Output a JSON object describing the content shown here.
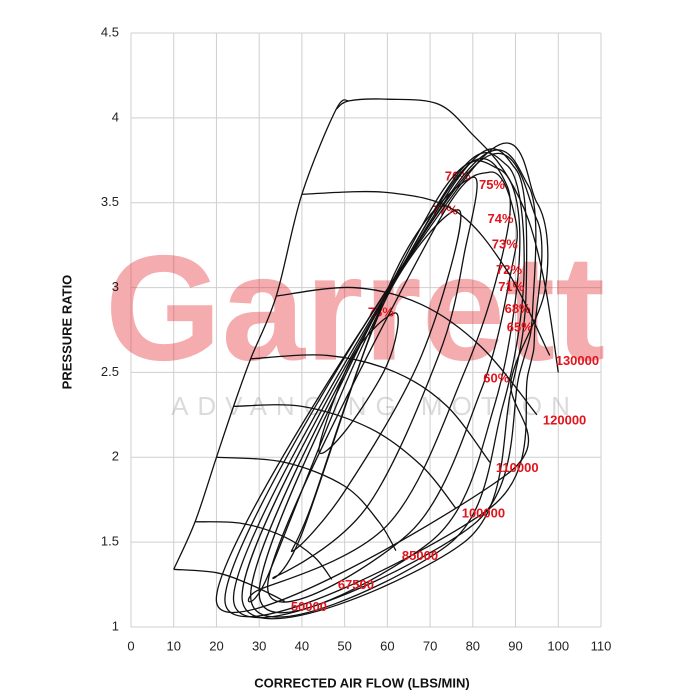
{
  "chart_data": {
    "type": "compressor_map",
    "xlabel": "CORRECTED AIR FLOW (LBS/MIN)",
    "ylabel": "PRESSURE RATIO",
    "watermark": "Garrett",
    "watermark_tagline": "ADVANCING MOTION",
    "xlim": [
      0,
      110
    ],
    "ylim": [
      1,
      4.5
    ],
    "xticks": [
      0,
      10,
      20,
      30,
      40,
      50,
      60,
      70,
      80,
      90,
      100,
      110
    ],
    "yticks": [
      1,
      1.5,
      2,
      2.5,
      3,
      3.5,
      4,
      4.5
    ],
    "grid": true,
    "line_color": "#111111",
    "label_color": "#e3141c",
    "surge_line": {
      "x": [
        10,
        15,
        20,
        24,
        28,
        34,
        40,
        48,
        51
      ],
      "y": [
        1.34,
        1.62,
        2.0,
        2.3,
        2.58,
        2.95,
        3.55,
        4.05,
        4.1
      ]
    },
    "map_boundary": {
      "x": [
        48,
        51,
        60,
        72,
        80,
        87,
        93,
        97,
        100
      ],
      "y": [
        4.05,
        4.1,
        4.11,
        4.08,
        3.9,
        3.7,
        3.4,
        3.0,
        2.5
      ]
    },
    "speed_lines": [
      {
        "label": "50000",
        "x": [
          10,
          20,
          27,
          33,
          36
        ],
        "y": [
          1.34,
          1.32,
          1.26,
          1.19,
          1.15
        ]
      },
      {
        "label": "67500",
        "x": [
          15,
          26,
          36,
          43,
          47
        ],
        "y": [
          1.62,
          1.61,
          1.53,
          1.41,
          1.28
        ]
      },
      {
        "label": "85000",
        "x": [
          20,
          36,
          50,
          58,
          62
        ],
        "y": [
          2.0,
          1.97,
          1.83,
          1.62,
          1.45
        ]
      },
      {
        "label": "100000",
        "x": [
          24,
          40,
          56,
          68,
          76
        ],
        "y": [
          2.3,
          2.3,
          2.17,
          1.95,
          1.7
        ]
      },
      {
        "label": "110000",
        "x": [
          28,
          46,
          62,
          74,
          84
        ],
        "y": [
          2.58,
          2.6,
          2.5,
          2.3,
          1.97
        ]
      },
      {
        "label": "120000",
        "x": [
          34,
          52,
          68,
          82,
          95
        ],
        "y": [
          2.95,
          3.0,
          2.9,
          2.65,
          2.25
        ]
      },
      {
        "label": "130000",
        "x": [
          40,
          60,
          76,
          88,
          98
        ],
        "y": [
          3.55,
          3.56,
          3.45,
          3.1,
          2.6
        ]
      }
    ],
    "efficiency_islands": [
      {
        "label": "78%",
        "x": [
          62,
          52,
          44,
          50,
          60
        ],
        "y": [
          2.85,
          2.6,
          2.05,
          2.15,
          2.55
        ]
      },
      {
        "label": "77%",
        "x": [
          77,
          60,
          42,
          38,
          50,
          68
        ],
        "y": [
          3.45,
          2.95,
          1.7,
          1.45,
          1.8,
          2.6
        ]
      },
      {
        "label": "76%",
        "x": [
          80,
          62,
          40,
          34,
          55,
          72,
          78
        ],
        "y": [
          3.65,
          3.1,
          1.55,
          1.3,
          1.7,
          2.6,
          3.2
        ]
      },
      {
        "label": "75%",
        "x": [
          88,
          78,
          55,
          32,
          30,
          60,
          78,
          87
        ],
        "y": [
          3.6,
          3.7,
          2.7,
          1.3,
          1.22,
          1.6,
          2.5,
          3.2
        ]
      },
      {
        "label": "74%",
        "x": [
          90,
          84,
          70,
          32,
          65,
          82,
          89
        ],
        "y": [
          3.4,
          3.68,
          3.3,
          1.25,
          1.55,
          2.4,
          3.1
        ]
      },
      {
        "label": "73%",
        "x": [
          91,
          86,
          70,
          30,
          70,
          85
        ],
        "y": [
          3.25,
          3.7,
          3.45,
          1.2,
          1.5,
          2.3
        ]
      },
      {
        "label": "72%",
        "x": [
          92,
          88,
          72,
          28,
          74,
          87
        ],
        "y": [
          3.1,
          3.72,
          3.5,
          1.18,
          1.48,
          2.3
        ]
      },
      {
        "label": "71%",
        "x": [
          92.5,
          90,
          74,
          26,
          78,
          89
        ],
        "y": [
          3.0,
          3.7,
          3.55,
          1.17,
          1.5,
          2.4
        ]
      },
      {
        "label": "68%",
        "x": [
          94,
          93,
          76,
          24,
          80,
          91
        ],
        "y": [
          2.87,
          3.6,
          3.6,
          1.16,
          1.6,
          2.5
        ]
      },
      {
        "label": "65%",
        "x": [
          94.5,
          95,
          78,
          22,
          84,
          93
        ],
        "y": [
          2.76,
          3.4,
          3.65,
          1.15,
          1.7,
          2.5
        ]
      },
      {
        "label": "60%",
        "x": [
          89,
          97,
          95,
          80,
          20,
          88
        ],
        "y": [
          2.46,
          3.0,
          3.5,
          3.7,
          1.15,
          1.9
        ]
      }
    ]
  }
}
